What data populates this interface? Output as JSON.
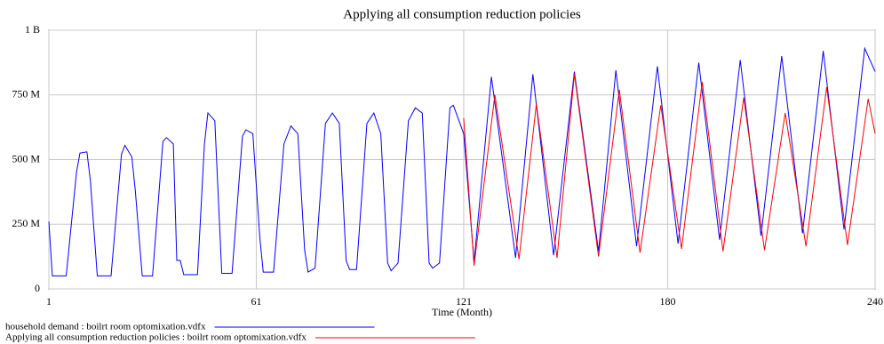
{
  "chart_data": {
    "type": "line",
    "title": "Applying all consumption reduction policies",
    "xlabel": "Time (Month)",
    "xlim": [
      1,
      240
    ],
    "xticks": [
      1,
      61,
      121,
      180,
      240
    ],
    "ylim": [
      0,
      1000000000
    ],
    "yticks": [
      {
        "value": 0,
        "label": "0"
      },
      {
        "value": 250000000,
        "label": "250 M"
      },
      {
        "value": 500000000,
        "label": "500 M"
      },
      {
        "value": 750000000,
        "label": "750 M"
      },
      {
        "value": 1000000000,
        "label": "1 B"
      }
    ],
    "grid": true,
    "series": [
      {
        "name": "household demand : boilrt room optomixation.vdfx",
        "color": "#0000ff",
        "x": [
          1,
          2,
          6,
          9,
          10,
          12,
          13,
          15,
          19,
          22,
          23,
          25,
          26,
          28,
          31,
          34,
          35,
          37,
          38,
          39,
          40,
          44,
          46,
          47,
          49,
          51,
          54,
          57,
          58,
          60,
          62,
          63,
          66,
          69,
          71,
          73,
          75,
          76,
          78,
          81,
          83,
          85,
          87,
          88,
          90,
          93,
          95,
          97,
          99,
          100,
          102,
          105,
          107,
          109,
          111,
          112,
          114,
          117,
          118,
          121,
          124,
          129,
          136,
          141,
          147,
          153,
          160,
          165,
          171,
          177,
          183,
          189,
          195,
          201,
          207,
          213,
          219,
          225,
          231,
          237,
          240
        ],
        "values": [
          260000000,
          50000000,
          50000000,
          450000000,
          525000000,
          530000000,
          420000000,
          50000000,
          50000000,
          520000000,
          555000000,
          510000000,
          380000000,
          50000000,
          50000000,
          570000000,
          585000000,
          560000000,
          110000000,
          110000000,
          55000000,
          55000000,
          560000000,
          680000000,
          650000000,
          60000000,
          60000000,
          590000000,
          615000000,
          600000000,
          200000000,
          65000000,
          65000000,
          560000000,
          630000000,
          600000000,
          150000000,
          65000000,
          80000000,
          640000000,
          680000000,
          640000000,
          110000000,
          75000000,
          75000000,
          640000000,
          680000000,
          600000000,
          100000000,
          70000000,
          100000000,
          650000000,
          700000000,
          680000000,
          100000000,
          80000000,
          100000000,
          700000000,
          710000000,
          600000000,
          105000000,
          820000000,
          120000000,
          830000000,
          130000000,
          840000000,
          145000000,
          845000000,
          165000000,
          860000000,
          175000000,
          875000000,
          190000000,
          885000000,
          205000000,
          900000000,
          215000000,
          920000000,
          230000000,
          930000000,
          840000000
        ]
      },
      {
        "name": "Applying all consumption reduction policies : boilrt room optomixation.vdfx",
        "color": "#ff0000",
        "x": [
          121,
          124,
          130,
          137,
          142,
          148,
          153,
          160,
          166,
          172,
          178,
          184,
          190,
          196,
          202,
          208,
          214,
          220,
          226,
          232,
          238,
          240
        ],
        "values": [
          660000000,
          90000000,
          750000000,
          115000000,
          715000000,
          120000000,
          830000000,
          125000000,
          770000000,
          140000000,
          710000000,
          155000000,
          800000000,
          145000000,
          740000000,
          150000000,
          680000000,
          165000000,
          780000000,
          170000000,
          735000000,
          600000000
        ]
      }
    ]
  }
}
